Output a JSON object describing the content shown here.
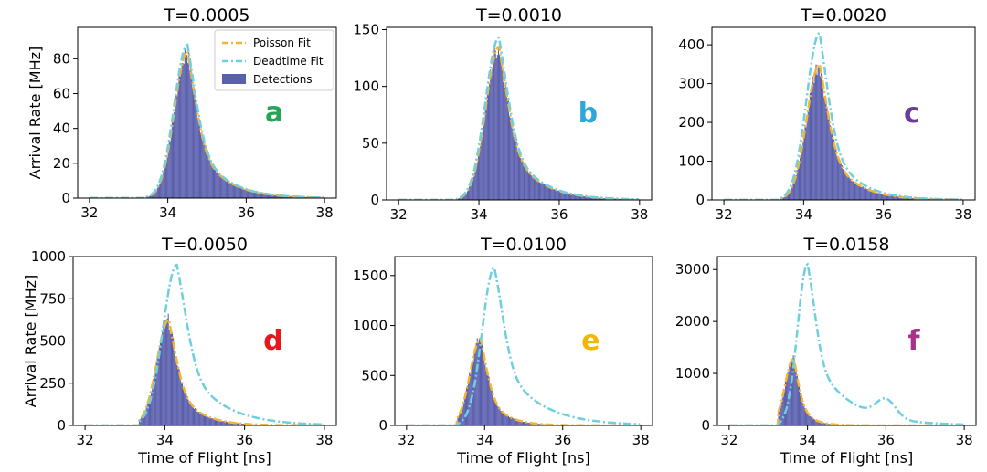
{
  "chart_data": {
    "type": "bar",
    "xlabel": "Time of Flight [ns]",
    "ylabel": "Arrival Rate [MHz]",
    "xlim": [
      31.7,
      38.3
    ],
    "xticks": [
      32,
      34,
      36,
      38
    ],
    "legend": {
      "placement": "top-right",
      "entries": [
        "Poisson Fit",
        "Deadtime Fit",
        "Detections"
      ]
    },
    "colors": {
      "detections": "#5a5fad",
      "poisson": "#f5b533",
      "deadtime": "#6ecfde"
    },
    "panels": [
      {
        "id": "a",
        "title": "T=0.0005",
        "letter": "a",
        "letter_color": "#27a35a",
        "ylim": [
          0,
          98
        ],
        "yticks": [
          0,
          20,
          40,
          60,
          80
        ],
        "x_start": 33.55,
        "peak_x": 34.5,
        "sigma": 0.33,
        "tau": 0.7,
        "detections_peak": 84,
        "poisson_peak": 84,
        "deadtime_peak": 88,
        "tail_bump": null
      },
      {
        "id": "b",
        "title": "T=0.0010",
        "letter": "b",
        "letter_color": "#2fa8d9",
        "ylim": [
          0,
          152
        ],
        "yticks": [
          0,
          50,
          100,
          150
        ],
        "x_start": 33.55,
        "peak_x": 34.5,
        "sigma": 0.33,
        "tau": 0.7,
        "detections_peak": 135,
        "poisson_peak": 135,
        "deadtime_peak": 143,
        "tail_bump": null
      },
      {
        "id": "c",
        "title": "T=0.0020",
        "letter": "c",
        "letter_color": "#6a3d9a",
        "ylim": [
          0,
          445
        ],
        "yticks": [
          0,
          100,
          200,
          300,
          400
        ],
        "x_start": 33.5,
        "peak_x": 34.4,
        "sigma": 0.32,
        "tau": 0.65,
        "detections_peak": 350,
        "poisson_peak": 350,
        "deadtime_peak": 430,
        "tail_bump": null
      },
      {
        "id": "d",
        "title": "T=0.0050",
        "letter": "d",
        "letter_color": "#e31a1c",
        "ylim": [
          0,
          1000
        ],
        "yticks": [
          0,
          250,
          500,
          750,
          1000
        ],
        "x_start": 33.45,
        "peak_x": 34.1,
        "sigma": 0.3,
        "tau": 0.55,
        "detections_peak": 620,
        "poisson_peak": 625,
        "deadtime_peak": 950,
        "deadtime_peak_x": 34.3,
        "deadtime_tau": 0.85,
        "tail_bump": null
      },
      {
        "id": "e",
        "title": "T=0.0100",
        "letter": "e",
        "letter_color": "#f2b705",
        "ylim": [
          0,
          1690
        ],
        "yticks": [
          0,
          500,
          1000,
          1500
        ],
        "x_start": 33.4,
        "peak_x": 33.9,
        "sigma": 0.27,
        "tau": 0.45,
        "detections_peak": 870,
        "poisson_peak": 870,
        "deadtime_peak": 1580,
        "deadtime_peak_x": 34.25,
        "deadtime_tau": 0.9,
        "tail_bump": null
      },
      {
        "id": "f",
        "title": "T=0.0158",
        "letter": "f",
        "letter_color": "#a8328a",
        "ylim": [
          0,
          3250
        ],
        "yticks": [
          0,
          1000,
          2000,
          3000
        ],
        "x_start": 33.35,
        "peak_x": 33.65,
        "sigma": 0.22,
        "tau": 0.3,
        "detections_peak": 1300,
        "poisson_peak": 1300,
        "deadtime_peak": 3100,
        "deadtime_peak_x": 34.0,
        "deadtime_tau": 0.9,
        "tail_bump": {
          "x": 36.0,
          "height": 350,
          "width": 0.25
        }
      }
    ]
  }
}
